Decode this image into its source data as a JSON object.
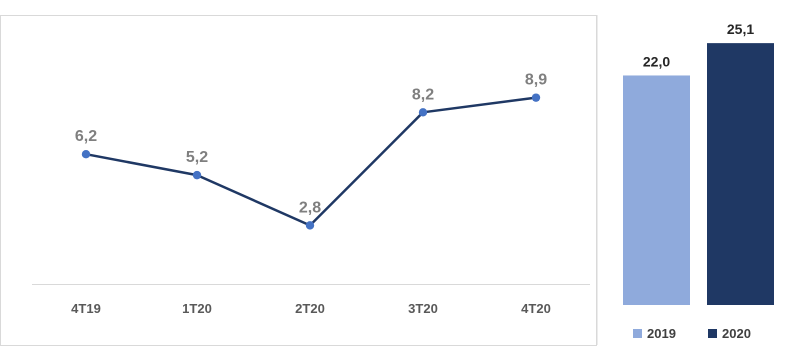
{
  "chart_data": [
    {
      "type": "line",
      "categories": [
        "4T19",
        "1T20",
        "2T20",
        "3T20",
        "4T20"
      ],
      "series": [
        {
          "values": [
            6.2,
            5.2,
            2.8,
            8.2,
            8.9
          ]
        }
      ],
      "data_labels": [
        "6,2",
        "5,2",
        "2,8",
        "8,2",
        "8,9"
      ],
      "ylim": [
        0,
        12.8
      ],
      "grid": false,
      "colors": {
        "line": "#1f3864",
        "marker": "#4472c4",
        "label": "#7f7f7f",
        "tick": "#595959"
      }
    },
    {
      "type": "bar",
      "categories": [
        "2019",
        "2020"
      ],
      "values": [
        22.0,
        25.1
      ],
      "data_labels": [
        "22,0",
        "25,1"
      ],
      "ylim": [
        0,
        27.7
      ],
      "legend": {
        "placement": "bottom",
        "entries": [
          "2019",
          "2020"
        ]
      },
      "colors": [
        "#8faadc",
        "#1f3864"
      ],
      "label_color": "#262626"
    }
  ]
}
